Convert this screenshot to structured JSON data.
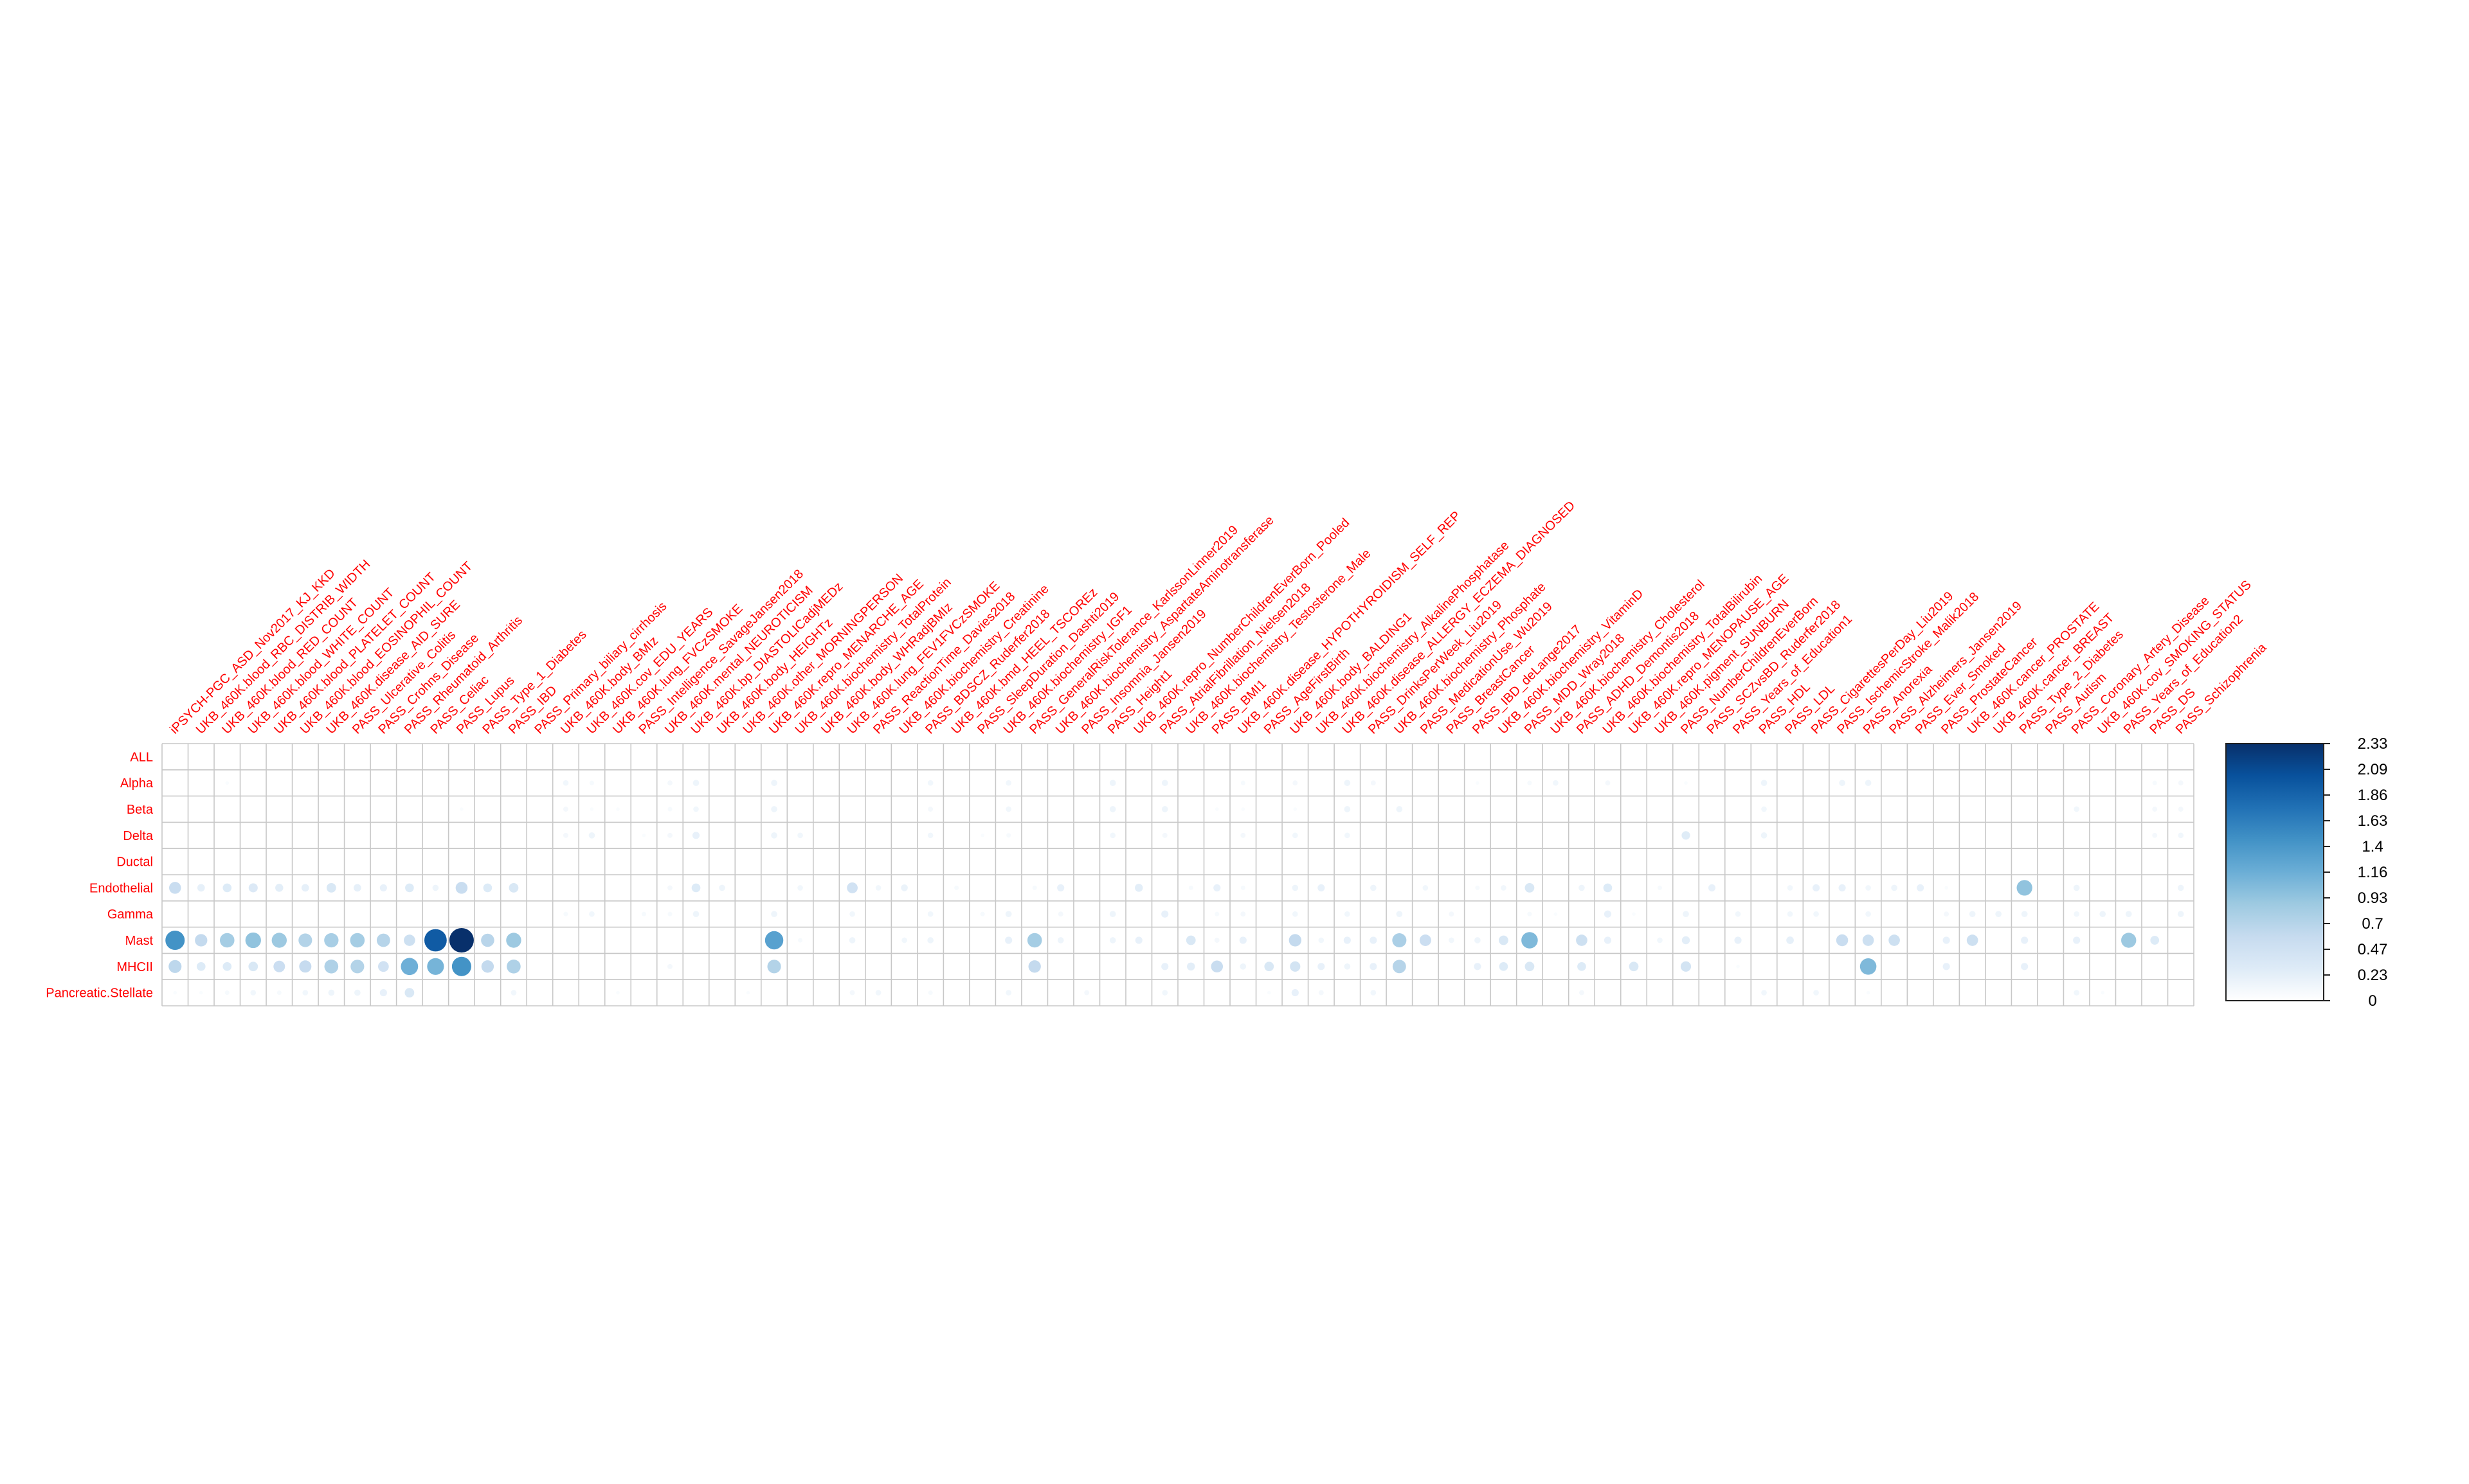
{
  "chart_data": {
    "type": "heatmap",
    "style": "corrplot-circles",
    "rows": [
      "ALL",
      "Alpha",
      "Beta",
      "Delta",
      "Ductal",
      "Endothelial",
      "Gamma",
      "Mast",
      "MHCII",
      "Pancreatic.Stellate"
    ],
    "columns": [
      "iPSYCH-PGC_ASD_Nov2017_KJ_KKD",
      "UKB_460K.blood_RBC_DISTRIB_WIDTH",
      "UKB_460K.blood_RED_COUNT",
      "UKB_460K.blood_WHITE_COUNT",
      "UKB_460K.blood_PLATELET_COUNT",
      "UKB_460K.blood_EOSINOPHIL_COUNT",
      "UKB_460K.disease_AID_SURE",
      "PASS_Ulcerative_Colitis",
      "PASS_Crohns_Disease",
      "PASS_Rheumatoid_Arthritis",
      "PASS_Celiac",
      "PASS_Lupus",
      "PASS_Type_1_Diabetes",
      "PASS_IBD",
      "PASS_Primary_biliary_cirrhosis",
      "UKB_460K.body_BMIz",
      "UKB_460K.cov_EDU_YEARS",
      "UKB_460K.lung_FVCzSMOKE",
      "PASS_Intelligence_SavageJansen2018",
      "UKB_460K.mental_NEUROTICISM",
      "UKB_460K.bp_DIASTOLICadjMEDz",
      "UKB_460K.body_HEIGHTz",
      "UKB_460K.other_MORNINGPERSON",
      "UKB_460K.repro_MENARCHE_AGE",
      "UKB_460K.biochemistry_TotalProtein",
      "UKB_460K.body_WHRadjBMIz",
      "UKB_460K.lung_FEV1FVCzSMOKE",
      "PASS_ReactionTime_Davies2018",
      "UKB_460K.biochemistry_Creatinine",
      "PASS_BDSCZ_Ruderfer2018",
      "UKB_460K.bmd_HEEL_TSCOREz",
      "PASS_SleepDuration_Dashti2019",
      "UKB_460K.biochemistry_IGF1",
      "PASS_GeneralRiskTolerance_KarlssonLinner2019",
      "UKB_460K.biochemistry_AspartateAminotransferase",
      "PASS_Insomnia_Jansen2019",
      "PASS_Height1",
      "UKB_460K.repro_NumberChildrenEverBorn_Pooled",
      "PASS_AtrialFibrillation_Nielsen2018",
      "UKB_460K.biochemistry_Testosterone_Male",
      "PASS_BMI1",
      "UKB_460K.disease_HYPOTHYROIDISM_SELF_REP",
      "PASS_AgeFirstBirth",
      "UKB_460K.body_BALDING1",
      "UKB_460K.biochemistry_AlkalinePhosphatase",
      "UKB_460K.disease_ALLERGY_ECZEMA_DIAGNOSED",
      "PASS_DrinksPerWeek_Liu2019",
      "UKB_460K.biochemistry_Phosphate",
      "PASS_MedicationUse_Wu2019",
      "PASS_BreastCancer",
      "PASS_IBD_deLange2017",
      "UKB_460K.biochemistry_VitaminD",
      "PASS_MDD_Wray2018",
      "UKB_460K.biochemistry_Cholesterol",
      "PASS_ADHD_Demontis2018",
      "UKB_460K.biochemistry_TotalBilirubin",
      "UKB_460K.repro_MENOPAUSE_AGE",
      "UKB_460K.pigment_SUNBURN",
      "PASS_NumberChildrenEverBorn",
      "PASS_SCZvsBD_Ruderfer2018",
      "PASS_Years_of_Education1",
      "PASS_HDL",
      "PASS_LDL",
      "PASS_CigarettesPerDay_Liu2019",
      "PASS_IschemicStroke_Malik2018",
      "PASS_Anorexia",
      "PASS_Alzheimers_Jansen2019",
      "PASS_Ever_Smoked",
      "PASS_ProstateCancer",
      "UKB_460K.cancer_PROSTATE",
      "UKB_460K.cancer_BREAST",
      "PASS_Type_2_Diabetes",
      "PASS_Autism",
      "PASS_Coronary_Artery_Disease",
      "UKB_460K.cov_SMOKING_STATUS",
      "PASS_Years_of_Education2",
      "PASS_DS",
      "PASS_Schizophrenia"
    ],
    "colorbar": {
      "min": 0,
      "max": 2.33,
      "tick_labels": [
        "2.33",
        "2.09",
        "1.86",
        "1.63",
        "1.4",
        "1.16",
        "0.93",
        "0.7",
        "0.47",
        "0.23",
        "0"
      ],
      "colors": [
        "#ffffff",
        "#deebf7",
        "#c6dbef",
        "#9ecae1",
        "#6baed6",
        "#4292c6",
        "#2171b5",
        "#08519c",
        "#08306b"
      ]
    },
    "label_color": "#ff0000",
    "grid": true,
    "legend_position": "right",
    "values": [
      [
        0,
        0,
        0,
        0,
        0,
        0,
        0,
        0,
        0,
        0,
        0,
        0,
        0,
        0,
        0,
        0,
        0,
        0,
        0,
        0,
        0,
        0,
        0,
        0,
        0,
        0,
        0,
        0,
        0,
        0,
        0,
        0,
        0,
        0,
        0,
        0,
        0,
        0,
        0,
        0,
        0,
        0,
        0,
        0,
        0,
        0,
        0,
        0,
        0,
        0,
        0,
        0,
        0,
        0,
        0,
        0,
        0,
        0,
        0,
        0,
        0,
        0,
        0,
        0,
        0,
        0,
        0,
        0,
        0,
        0,
        0,
        0,
        0,
        0,
        0,
        0,
        0,
        0
      ],
      [
        0,
        0,
        0.05,
        0,
        0,
        0,
        0,
        0,
        0,
        0,
        0,
        0,
        0,
        0,
        0,
        0.12,
        0.08,
        0,
        0,
        0.1,
        0.15,
        0,
        0,
        0.15,
        0,
        0,
        0,
        0,
        0,
        0.12,
        0,
        0,
        0.12,
        0,
        0,
        0,
        0.15,
        0,
        0.15,
        0,
        0,
        0.08,
        0,
        0.1,
        0,
        0.15,
        0.1,
        0,
        0,
        0,
        0.05,
        0,
        0.08,
        0.12,
        0,
        0.1,
        0,
        0,
        0.05,
        0,
        0,
        0.15,
        0,
        0,
        0.15,
        0.15,
        0,
        0,
        0,
        0,
        0,
        0,
        0,
        0,
        0,
        0,
        0.08,
        0.1
      ],
      [
        0,
        0,
        0,
        0,
        0,
        0,
        0,
        0,
        0,
        0,
        0,
        0.05,
        0,
        0,
        0,
        0.1,
        0.05,
        0.05,
        0,
        0.08,
        0.12,
        0,
        0,
        0.15,
        0,
        0,
        0,
        0,
        0,
        0.1,
        0,
        0,
        0.12,
        0,
        0,
        0,
        0.15,
        0,
        0.15,
        0,
        0.05,
        0.05,
        0,
        0.05,
        0,
        0.15,
        0,
        0.15,
        0,
        0,
        0,
        0,
        0,
        0,
        0,
        0,
        0,
        0,
        0,
        0,
        0,
        0.12,
        0,
        0,
        0,
        0,
        0,
        0,
        0,
        0,
        0,
        0,
        0,
        0.12,
        0,
        0,
        0.1,
        0.1
      ],
      [
        0,
        0,
        0,
        0,
        0,
        0,
        0,
        0,
        0,
        0,
        0,
        0,
        0,
        0,
        0,
        0.1,
        0.15,
        0,
        0.05,
        0.1,
        0.2,
        0,
        0,
        0.15,
        0.12,
        0,
        0,
        0,
        0,
        0.12,
        0,
        0.05,
        0.08,
        0,
        0,
        0,
        0.12,
        0,
        0.1,
        0,
        0,
        0.1,
        0,
        0.12,
        0,
        0.12,
        0,
        0,
        0,
        0,
        0,
        0,
        0,
        0,
        0,
        0,
        0,
        0,
        0.28,
        0,
        0,
        0.15,
        0,
        0,
        0,
        0,
        0,
        0,
        0,
        0,
        0,
        0,
        0,
        0,
        0,
        0,
        0.1,
        0.12
      ],
      [
        0,
        0,
        0,
        0,
        0,
        0,
        0,
        0,
        0,
        0,
        0,
        0,
        0,
        0,
        0,
        0,
        0,
        0,
        0,
        0,
        0,
        0,
        0,
        0,
        0,
        0,
        0,
        0,
        0,
        0,
        0,
        0,
        0,
        0,
        0,
        0,
        0,
        0,
        0,
        0,
        0,
        0,
        0,
        0,
        0,
        0,
        0,
        0,
        0,
        0,
        0,
        0,
        0,
        0,
        0,
        0,
        0,
        0,
        0,
        0,
        0,
        0,
        0,
        0,
        0,
        0,
        0,
        0,
        0,
        0,
        0,
        0,
        0,
        0,
        0,
        0,
        0,
        0
      ],
      [
        0.55,
        0.22,
        0.3,
        0.32,
        0.25,
        0.22,
        0.35,
        0.22,
        0.2,
        0.3,
        0.15,
        0.55,
        0.3,
        0.35,
        0,
        0,
        0,
        0,
        0,
        0.1,
        0.3,
        0.15,
        0,
        0,
        0.12,
        0,
        0.45,
        0.12,
        0.18,
        0,
        0.08,
        0,
        0,
        0.08,
        0.2,
        0,
        0,
        0.25,
        0,
        0.08,
        0.2,
        0.08,
        0,
        0.15,
        0.2,
        0,
        0.15,
        0,
        0.12,
        0,
        0.08,
        0.12,
        0.35,
        0,
        0.15,
        0.3,
        0,
        0.08,
        0,
        0.2,
        0,
        0,
        0.12,
        0.2,
        0.2,
        0.12,
        0.15,
        0.2,
        0.05,
        0,
        0,
        0.95,
        0,
        0.15,
        0,
        0,
        0,
        0.15
      ],
      [
        0,
        0,
        0,
        0,
        0,
        0,
        0,
        0,
        0,
        0,
        0,
        0,
        0,
        0,
        0,
        0.08,
        0.12,
        0,
        0.08,
        0.08,
        0.15,
        0,
        0,
        0.15,
        0,
        0,
        0.12,
        0,
        0,
        0.12,
        0,
        0.08,
        0.15,
        0,
        0.1,
        0,
        0.15,
        0,
        0.2,
        0,
        0.08,
        0.1,
        0,
        0.12,
        0,
        0.12,
        0,
        0.15,
        0,
        0.1,
        0,
        0,
        0.08,
        0.05,
        0,
        0.2,
        0.05,
        0,
        0.15,
        0,
        0.12,
        0,
        0.12,
        0.12,
        0,
        0.12,
        0,
        0,
        0.1,
        0.15,
        0.15,
        0.15,
        0,
        0.12,
        0.15,
        0.15,
        0,
        0.15
      ],
      [
        1.45,
        0.6,
        0.82,
        0.95,
        0.88,
        0.72,
        0.8,
        0.82,
        0.7,
        0.5,
        1.95,
        2.33,
        0.68,
        0.88,
        0,
        0,
        0,
        0,
        0,
        0,
        0,
        0,
        0,
        1.3,
        0.08,
        0,
        0.15,
        0,
        0.12,
        0.15,
        0,
        0,
        0.2,
        0.82,
        0.15,
        0,
        0.15,
        0.2,
        0,
        0.35,
        0.1,
        0.2,
        0,
        0.6,
        0.12,
        0.2,
        0.2,
        0.78,
        0.52,
        0.12,
        0.15,
        0.35,
        1.05,
        0,
        0.5,
        0.2,
        0,
        0.12,
        0.25,
        0,
        0.2,
        0,
        0.22,
        0,
        0.55,
        0.5,
        0.5,
        0,
        0.2,
        0.5,
        0,
        0.2,
        0,
        0.2,
        0,
        0.88,
        0.3,
        0
      ],
      [
        0.65,
        0.3,
        0.3,
        0.35,
        0.52,
        0.58,
        0.75,
        0.72,
        0.45,
        1.15,
        1.1,
        1.45,
        0.6,
        0.75,
        0,
        0,
        0,
        0,
        0,
        0.1,
        0,
        0,
        0,
        0.72,
        0,
        0,
        0,
        0,
        0,
        0,
        0,
        0,
        0,
        0.6,
        0,
        0,
        0,
        0,
        0.2,
        0.25,
        0.55,
        0.15,
        0.35,
        0.42,
        0.2,
        0.15,
        0.2,
        0.7,
        0,
        0,
        0.2,
        0.3,
        0.35,
        0,
        0.3,
        0,
        0.35,
        0,
        0.42,
        0,
        0.05,
        0,
        0,
        0,
        0,
        1.05,
        0,
        0,
        0.2,
        0,
        0,
        0.2,
        0,
        0,
        0,
        0,
        0,
        0
      ],
      [
        0.05,
        0.05,
        0.08,
        0.12,
        0.08,
        0.12,
        0.15,
        0.15,
        0.2,
        0.35,
        0,
        0,
        0,
        0.12,
        0,
        0,
        0,
        0.05,
        0,
        0,
        0,
        0,
        0.05,
        0,
        0,
        0,
        0.1,
        0.12,
        0,
        0.08,
        0,
        0,
        0.12,
        0,
        0,
        0.1,
        0,
        0,
        0.12,
        0,
        0,
        0,
        0.05,
        0.2,
        0.1,
        0,
        0.12,
        0,
        0,
        0,
        0,
        0,
        0,
        0,
        0.1,
        0,
        0,
        0,
        0,
        0,
        0,
        0.12,
        0,
        0.12,
        0,
        0.05,
        0,
        0,
        0,
        0,
        0,
        0,
        0,
        0.12,
        0.05,
        0,
        0,
        0
      ]
    ]
  }
}
